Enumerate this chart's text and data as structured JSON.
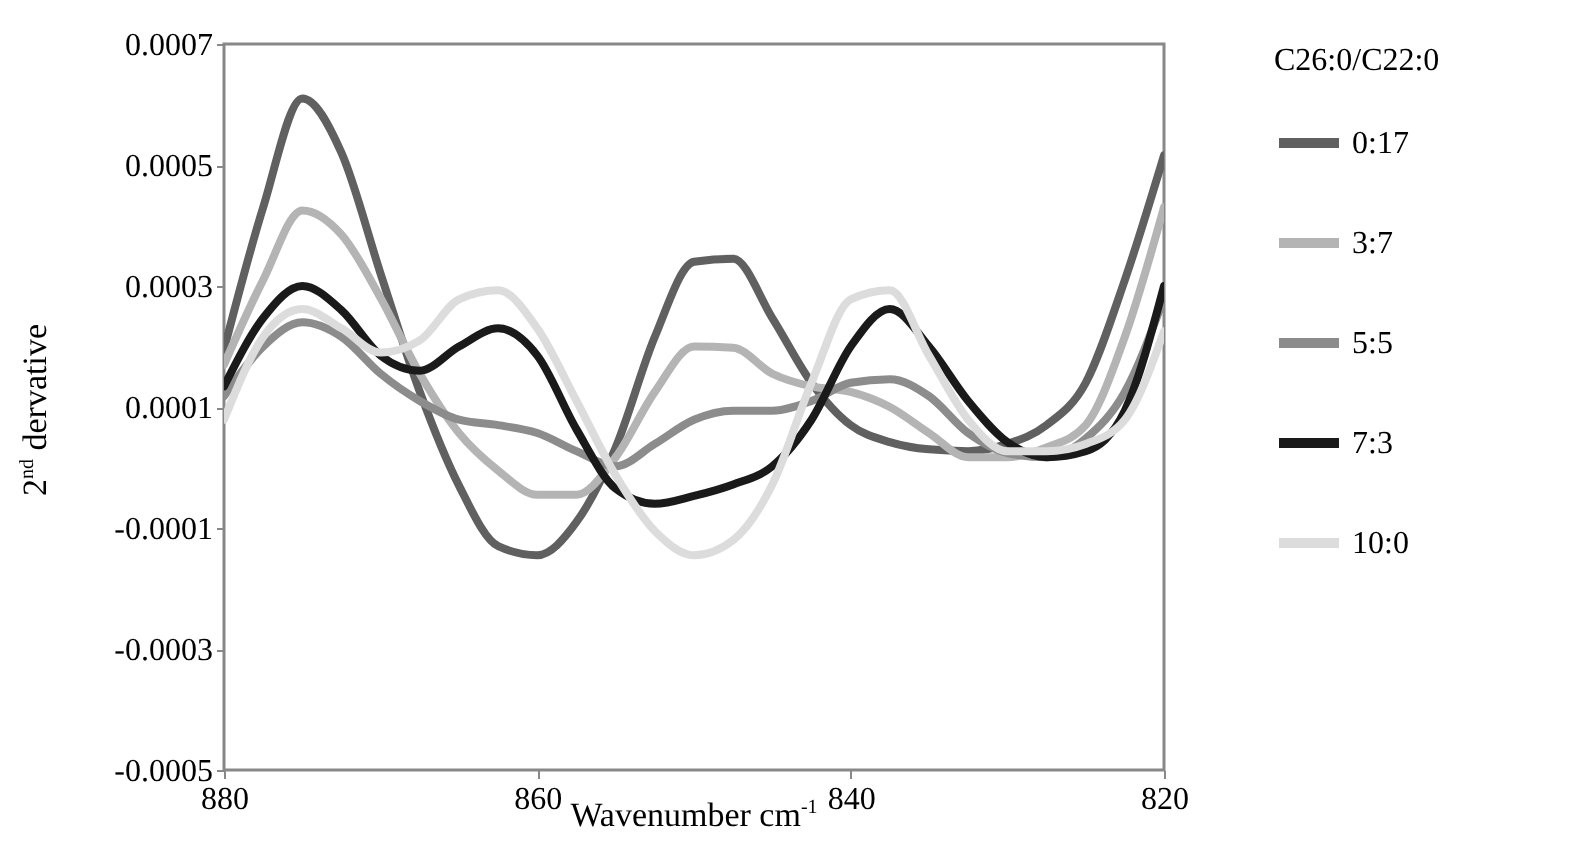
{
  "chart_data": {
    "type": "line",
    "xlabel": "Wavenumber cm$^{-1}$",
    "ylabel": "2$^{nd}$ dervative",
    "legend_title": "C26:0/C22:0",
    "legend": "right",
    "x": [
      880,
      877.5,
      875,
      872.5,
      870,
      867.5,
      865,
      862.5,
      860,
      857.5,
      855,
      852.5,
      850,
      847.5,
      845,
      842.5,
      840,
      837.5,
      835,
      832.5,
      830,
      827.5,
      825,
      822.5,
      820
    ],
    "xlim": [
      880,
      820
    ],
    "xticks": [
      880,
      860,
      840,
      820
    ],
    "ylim": [
      -0.0005,
      0.0007
    ],
    "yticks": [
      -0.0005,
      -0.0003,
      -0.0001,
      0.0001,
      0.0003,
      0.0005,
      0.0007
    ],
    "series": [
      {
        "name": "0:17",
        "color": "#606060",
        "values": [
          0.000195,
          0.00043,
          0.00061,
          0.00052,
          0.00032,
          0.000125,
          -3e-05,
          -0.00013,
          -0.000145,
          -9e-05,
          3.3e-05,
          0.000216,
          0.00034,
          0.000345,
          0.000247,
          0.00014,
          7e-05,
          4.2e-05,
          3e-05,
          2.7e-05,
          3.9e-05,
          7e-05,
          0.00014,
          0.00031,
          0.000516
        ]
      },
      {
        "name": "3:7",
        "color": "#b4b4b4",
        "values": [
          0.00017,
          0.00031,
          0.000425,
          0.000385,
          0.00028,
          0.000155,
          5.7e-05,
          -5e-06,
          -4.5e-05,
          -4.5e-05,
          1.7e-05,
          0.000125,
          0.0002,
          0.000198,
          0.000155,
          0.000134,
          0.000125,
          0.0001,
          5.7e-05,
          1.7e-05,
          1.7e-05,
          3.3e-05,
          7e-05,
          0.000216,
          0.00043
        ]
      },
      {
        "name": "5:5",
        "color": "#8c8c8c",
        "values": [
          0.000118,
          0.0002,
          0.00024,
          0.000216,
          0.000155,
          0.00011,
          7.9e-05,
          7e-05,
          5.7e-05,
          2.7e-05,
          2e-06,
          3.9e-05,
          7.9e-05,
          9.4e-05,
          9.4e-05,
          0.00011,
          0.00014,
          0.000146,
          0.000118,
          5.7e-05,
          2.4e-05,
          1.7e-05,
          4.8e-05,
          0.000125,
          0.00028
        ]
      },
      {
        "name": "7:3",
        "color": "#1a1a1a",
        "values": [
          0.000134,
          0.000247,
          0.0003,
          0.00026,
          0.000185,
          0.00016,
          0.0002,
          0.00023,
          0.000185,
          6.3e-05,
          -3.5e-05,
          -6e-05,
          -4.7e-05,
          -2.8e-05,
          2e-06,
          7.9e-05,
          0.0002,
          0.000262,
          0.0002,
          0.00011,
          4.2e-05,
          1.7e-05,
          2.7e-05,
          9.4e-05,
          0.0003
        ]
      },
      {
        "name": "10:0",
        "color": "#dcdcdc",
        "values": [
          7.9e-05,
          0.000216,
          0.000262,
          0.00023,
          0.00019,
          0.00021,
          0.000278,
          0.000293,
          0.00023,
          0.00011,
          -1.3e-05,
          -0.000105,
          -0.000145,
          -0.00012,
          -2.8e-05,
          0.00014,
          0.000278,
          0.000293,
          0.000185,
          7.9e-05,
          2.7e-05,
          2.7e-05,
          3.9e-05,
          7.9e-05,
          0.000225
        ]
      }
    ]
  }
}
